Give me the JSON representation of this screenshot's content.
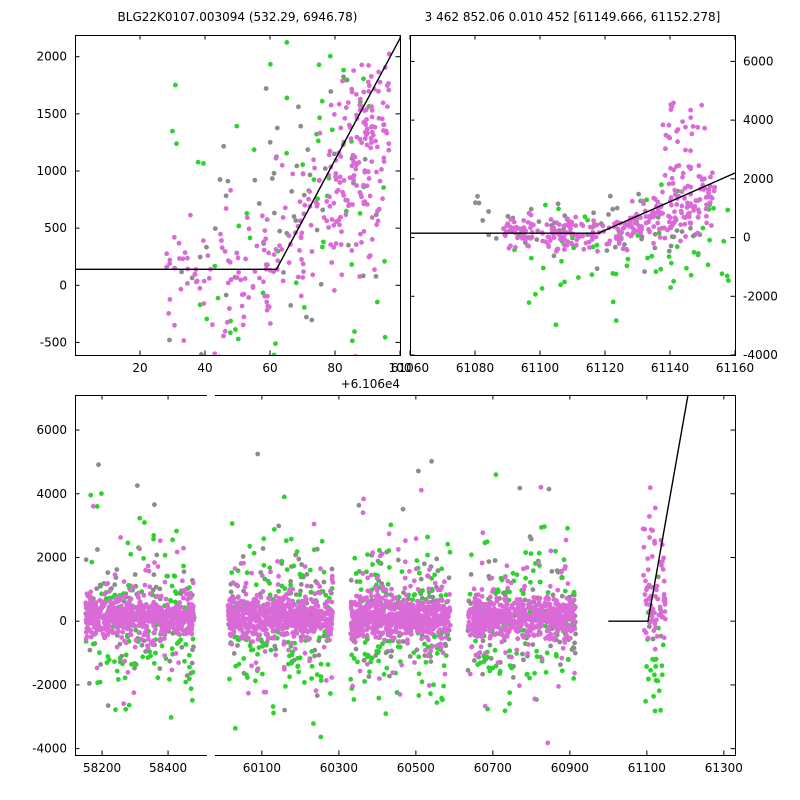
{
  "header": {
    "title_left": "BLG22K0107.003094 (532.29, 6946.78)",
    "title_right": "3 462 852.06 0.010 452 [61149.666, 61152.278]"
  },
  "colors": {
    "magenta": "#da6ad8",
    "green": "#2cd32c",
    "gray": "#8c8c8c",
    "line": "#000000"
  },
  "marker": {
    "radius": 2.4
  },
  "chart_data": [
    {
      "id": "zoom-flux-panel",
      "type": "scatter",
      "description": "Zoomed light curve around event, flux scale -500..2000",
      "segments": [
        {
          "xlim": [
            0,
            100
          ],
          "f": [
            0,
            1
          ]
        }
      ],
      "ylim": [
        -610,
        2190
      ],
      "x_offset_label": "+6.106e4",
      "x_ticks": [
        20,
        40,
        60,
        80,
        100
      ],
      "x_tick_labels": [
        "20",
        "40",
        "60",
        "80",
        "100"
      ],
      "y_ticks": [
        -500,
        0,
        500,
        1000,
        1500,
        2000
      ],
      "y_tick_labels": [
        "-500",
        "0",
        "500",
        "1000",
        "1500",
        "2000"
      ],
      "y_tick_side": "left",
      "model_line": [
        [
          0,
          140
        ],
        [
          62,
          140
        ],
        [
          100,
          2160
        ]
      ],
      "clusters": [
        {
          "series": "gray",
          "x0": 27,
          "x1": 93,
          "n": 48,
          "mean": 350,
          "sigma": 620
        },
        {
          "series": "gray",
          "x0": 55,
          "x1": 90,
          "n": 14,
          "mean": 1100,
          "sigma": 350
        },
        {
          "series": "green",
          "x0": 28,
          "x1": 96,
          "n": 52,
          "mean": 250,
          "sigma": 800
        },
        {
          "series": "green",
          "x0": 60,
          "x1": 95,
          "n": 16,
          "mean": 1500,
          "sigma": 450
        },
        {
          "series": "magenta",
          "x0": 27,
          "x1": 64,
          "n": 80,
          "mean": 130,
          "sigma": 330
        },
        {
          "series": "magenta",
          "x0": 58,
          "x1": 82,
          "n": 70,
          "trend": [
            58,
            150,
            82,
            950
          ],
          "sigma": 380
        },
        {
          "series": "magenta",
          "x0": 78,
          "x1": 97,
          "n": 120,
          "trend": [
            78,
            750,
            96,
            1500
          ],
          "sigma": 430
        },
        {
          "series": "magenta",
          "x0": 86,
          "x1": 94,
          "n": 40,
          "mean": 950,
          "sigma": 650
        }
      ]
    },
    {
      "id": "zoom-wide-panel",
      "type": "scatter",
      "description": "Same time window, full flux scale -4000..6000",
      "segments": [
        {
          "xlim": [
            61060,
            61160
          ],
          "f": [
            0,
            1
          ]
        }
      ],
      "ylim": [
        -4000,
        6900
      ],
      "x_ticks": [
        61060,
        61080,
        61100,
        61120,
        61140,
        61160
      ],
      "x_tick_labels": [
        "61060",
        "61080",
        "61100",
        "61120",
        "61140",
        "61160"
      ],
      "y_ticks": [
        -4000,
        -2000,
        0,
        2000,
        4000,
        6000
      ],
      "y_tick_labels": [
        "-4000",
        "-2000",
        "0",
        "2000",
        "4000",
        "6000"
      ],
      "y_tick_side": "right",
      "model_line": [
        [
          61060,
          150
        ],
        [
          61118,
          150
        ],
        [
          61160,
          2200
        ]
      ],
      "clusters": [
        {
          "series": "gray",
          "x0": 61078,
          "x1": 61150,
          "n": 55,
          "mean": 250,
          "sigma": 600,
          "clip": [
            -2200,
            2700
          ]
        },
        {
          "series": "green",
          "x0": 61092,
          "x1": 61158,
          "n": 55,
          "mean": -600,
          "sigma": 1000,
          "clip": [
            -3500,
            2200
          ]
        },
        {
          "series": "green",
          "x0": 61125,
          "x1": 61155,
          "n": 12,
          "mean": 800,
          "sigma": 600
        },
        {
          "series": "magenta",
          "x0": 61088,
          "x1": 61126,
          "n": 150,
          "mean": 130,
          "sigma": 260
        },
        {
          "series": "magenta",
          "x0": 61126,
          "x1": 61154,
          "n": 150,
          "trend": [
            61126,
            200,
            61152,
            1400
          ],
          "sigma": 420
        },
        {
          "series": "magenta",
          "x0": 61137,
          "x1": 61151,
          "n": 42,
          "mean": 2600,
          "sigma": 1300,
          "clip": [
            -300,
            5500
          ]
        }
      ]
    },
    {
      "id": "full-lightcurve-panel",
      "type": "scatter",
      "description": "Full multi-season light curve with broken time axis",
      "segments": [
        {
          "xlim": [
            58118,
            58518
          ],
          "f": [
            0,
            0.2
          ]
        },
        {
          "xlim": [
            59978,
            61329
          ],
          "f": [
            0.212,
            1
          ]
        }
      ],
      "ylim": [
        -4200,
        7100
      ],
      "x_ticks": [
        58200,
        58400,
        60100,
        60300,
        60500,
        60700,
        60900,
        61100,
        61300
      ],
      "x_tick_labels": [
        "58200",
        "58400",
        "60100",
        "60300",
        "60500",
        "60700",
        "60900",
        "61100",
        "61300"
      ],
      "y_ticks": [
        -4000,
        -2000,
        0,
        2000,
        4000,
        6000
      ],
      "y_tick_labels": [
        "-4000",
        "-2000",
        "0",
        "2000",
        "4000",
        "6000"
      ],
      "y_tick_side": "left",
      "model_line": [
        [
          61000,
          0
        ],
        [
          61103,
          0
        ],
        [
          61207,
          7100
        ]
      ],
      "clusters": [
        {
          "series": "magenta",
          "x0": 58150,
          "x1": 58480,
          "n": 520,
          "mean": 120,
          "sigma": 300
        },
        {
          "series": "magenta",
          "x0": 58150,
          "x1": 58480,
          "n": 80,
          "mean": 150,
          "sigma": 800
        },
        {
          "series": "magenta",
          "x0": 58150,
          "x1": 58480,
          "n": 28,
          "mean": 400,
          "sigma": 2000,
          "clip": [
            -4100,
            6900
          ]
        },
        {
          "series": "green",
          "x0": 58150,
          "x1": 58480,
          "n": 130,
          "mean": -150,
          "sigma": 1150,
          "clip": [
            -4100,
            4600
          ]
        },
        {
          "series": "green",
          "x0": 58150,
          "x1": 58480,
          "n": 10,
          "mean": 2500,
          "sigma": 900
        },
        {
          "series": "gray",
          "x0": 58150,
          "x1": 58480,
          "n": 100,
          "mean": 100,
          "sigma": 850
        },
        {
          "series": "gray",
          "x0": 58150,
          "x1": 58480,
          "n": 12,
          "mean": 1500,
          "sigma": 1800,
          "clip": [
            -4100,
            6900
          ]
        },
        {
          "series": "magenta",
          "x0": 60012,
          "x1": 60285,
          "n": 520,
          "mean": 120,
          "sigma": 300
        },
        {
          "series": "magenta",
          "x0": 60012,
          "x1": 60285,
          "n": 80,
          "mean": 150,
          "sigma": 800
        },
        {
          "series": "magenta",
          "x0": 60012,
          "x1": 60285,
          "n": 28,
          "mean": 400,
          "sigma": 2000,
          "clip": [
            -4100,
            6900
          ]
        },
        {
          "series": "green",
          "x0": 60012,
          "x1": 60285,
          "n": 130,
          "mean": -150,
          "sigma": 1150,
          "clip": [
            -4100,
            4600
          ]
        },
        {
          "series": "green",
          "x0": 60012,
          "x1": 60285,
          "n": 10,
          "mean": 2500,
          "sigma": 900
        },
        {
          "series": "gray",
          "x0": 60012,
          "x1": 60285,
          "n": 100,
          "mean": 100,
          "sigma": 850
        },
        {
          "series": "gray",
          "x0": 60012,
          "x1": 60285,
          "n": 12,
          "mean": 1500,
          "sigma": 1800,
          "clip": [
            -4100,
            6900
          ]
        },
        {
          "series": "magenta",
          "x0": 60330,
          "x1": 60590,
          "n": 520,
          "mean": 120,
          "sigma": 300
        },
        {
          "series": "magenta",
          "x0": 60330,
          "x1": 60590,
          "n": 80,
          "mean": 150,
          "sigma": 800
        },
        {
          "series": "magenta",
          "x0": 60330,
          "x1": 60590,
          "n": 28,
          "mean": 400,
          "sigma": 2000,
          "clip": [
            -4100,
            6900
          ]
        },
        {
          "series": "green",
          "x0": 60330,
          "x1": 60590,
          "n": 130,
          "mean": -150,
          "sigma": 1150,
          "clip": [
            -4100,
            4600
          ]
        },
        {
          "series": "green",
          "x0": 60330,
          "x1": 60590,
          "n": 10,
          "mean": 2500,
          "sigma": 900
        },
        {
          "series": "gray",
          "x0": 60330,
          "x1": 60590,
          "n": 100,
          "mean": 100,
          "sigma": 850
        },
        {
          "series": "gray",
          "x0": 60330,
          "x1": 60590,
          "n": 12,
          "mean": 1500,
          "sigma": 1800,
          "clip": [
            -4100,
            6900
          ]
        },
        {
          "series": "magenta",
          "x0": 60635,
          "x1": 60915,
          "n": 520,
          "mean": 120,
          "sigma": 300
        },
        {
          "series": "magenta",
          "x0": 60635,
          "x1": 60915,
          "n": 80,
          "mean": 150,
          "sigma": 800
        },
        {
          "series": "magenta",
          "x0": 60635,
          "x1": 60915,
          "n": 28,
          "mean": 400,
          "sigma": 2000,
          "clip": [
            -4100,
            6900
          ]
        },
        {
          "series": "green",
          "x0": 60635,
          "x1": 60915,
          "n": 130,
          "mean": -150,
          "sigma": 1150,
          "clip": [
            -4100,
            4600
          ]
        },
        {
          "series": "green",
          "x0": 60635,
          "x1": 60915,
          "n": 10,
          "mean": 2500,
          "sigma": 900
        },
        {
          "series": "gray",
          "x0": 60635,
          "x1": 60915,
          "n": 100,
          "mean": 100,
          "sigma": 850
        },
        {
          "series": "gray",
          "x0": 60635,
          "x1": 60915,
          "n": 12,
          "mean": 1500,
          "sigma": 1800,
          "clip": [
            -4100,
            6900
          ]
        },
        {
          "series": "gray",
          "x0": 61095,
          "x1": 61140,
          "n": 8,
          "mean": -200,
          "sigma": 700
        },
        {
          "series": "green",
          "x0": 61092,
          "x1": 61145,
          "n": 22,
          "mean": -1300,
          "sigma": 900,
          "clip": [
            -3300,
            600
          ]
        },
        {
          "series": "magenta",
          "x0": 61090,
          "x1": 61148,
          "n": 60,
          "mean": 700,
          "sigma": 900,
          "clip": [
            -900,
            3100
          ]
        },
        {
          "series": "magenta",
          "x0": 61100,
          "x1": 61140,
          "n": 10,
          "mean": 2900,
          "sigma": 900,
          "clip": [
            500,
            5600
          ]
        }
      ]
    }
  ]
}
